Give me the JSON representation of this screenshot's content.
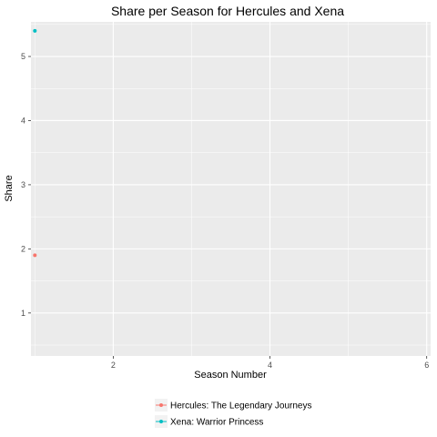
{
  "chart_data": {
    "type": "scatter",
    "title": "Share per Season for Hercules and Xena",
    "xlabel": "Season Number",
    "ylabel": "Share",
    "xlim": [
      0.95,
      6.05
    ],
    "ylim": [
      0.33,
      5.54
    ],
    "x_ticks": [
      2,
      4,
      6
    ],
    "y_ticks": [
      1,
      2,
      3,
      4,
      5
    ],
    "x_tick_labels": [
      "2",
      "4",
      "6"
    ],
    "y_tick_labels": [
      "1",
      "2",
      "3",
      "4",
      "5"
    ],
    "grid": true,
    "legend_position": "bottom",
    "series": [
      {
        "name": "Hercules: The Legendary Journeys",
        "color": "#F8766D",
        "points": [
          {
            "x": 1,
            "y": 1.9
          }
        ]
      },
      {
        "name": "Xena: Warrior Princess",
        "color": "#00BFC4",
        "points": [
          {
            "x": 1,
            "y": 5.4
          }
        ]
      }
    ],
    "panel_color": "#EBEBEB",
    "grid_color": "#FFFFFF"
  }
}
